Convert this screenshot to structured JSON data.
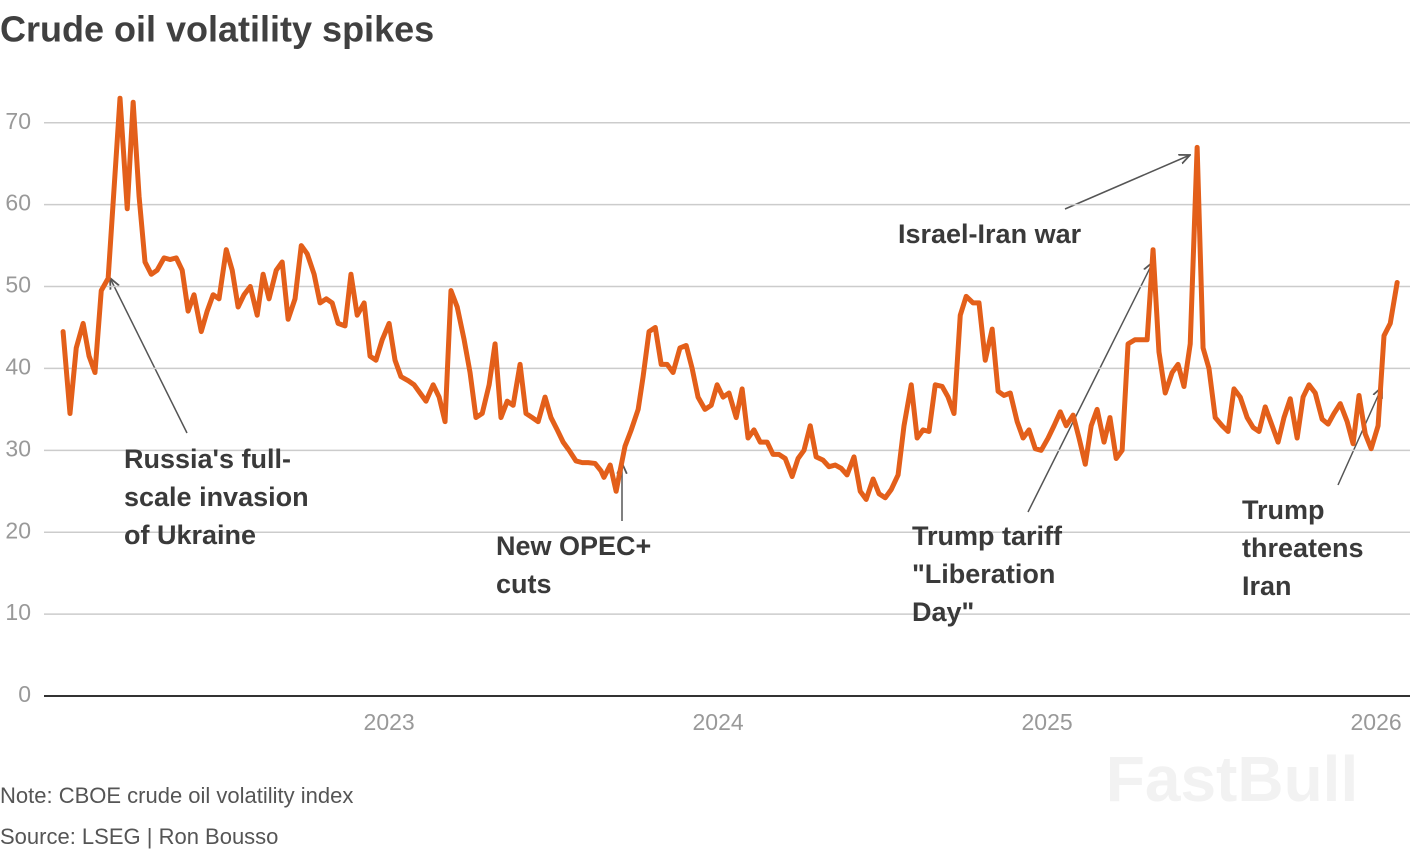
{
  "chart_data": {
    "type": "line",
    "title": "Crude oil volatility spikes",
    "note": "Note: CBOE crude oil volatility index",
    "source": "Source: LSEG | Ron Bousso",
    "watermark": "FastBull",
    "xlim": [
      2021.951,
      2026.103
    ],
    "xticks": [
      2023,
      2024,
      2025,
      2026
    ],
    "ylim": [
      0,
      74
    ],
    "yticks": [
      0,
      10,
      20,
      30,
      40,
      50,
      60,
      70
    ],
    "grid": true,
    "x": [
      2022.009,
      2022.03,
      2022.049,
      2022.07,
      2022.088,
      2022.106,
      2022.125,
      2022.146,
      2022.164,
      2022.182,
      2022.204,
      2022.222,
      2022.24,
      2022.258,
      2022.277,
      2022.295,
      2022.316,
      2022.334,
      2022.353,
      2022.371,
      2022.389,
      2022.407,
      2022.429,
      2022.447,
      2022.465,
      2022.483,
      2022.505,
      2022.523,
      2022.541,
      2022.559,
      2022.578,
      2022.599,
      2022.617,
      2022.635,
      2022.657,
      2022.675,
      2022.693,
      2022.714,
      2022.733,
      2022.751,
      2022.772,
      2022.79,
      2022.809,
      2022.827,
      2022.845,
      2022.866,
      2022.884,
      2022.903,
      2022.924,
      2022.942,
      2022.96,
      2022.979,
      2023.0,
      2023.018,
      2023.036,
      2023.058,
      2023.076,
      2023.094,
      2023.112,
      2023.134,
      2023.152,
      2023.17,
      2023.188,
      2023.207,
      2023.228,
      2023.246,
      2023.264,
      2023.283,
      2023.304,
      2023.322,
      2023.34,
      2023.359,
      2023.377,
      2023.398,
      2023.416,
      2023.435,
      2023.453,
      2023.474,
      2023.492,
      2023.511,
      2023.529,
      2023.547,
      2023.568,
      2023.587,
      2023.605,
      2023.626,
      2023.644,
      2023.653,
      2023.672,
      2023.69,
      2023.702,
      2023.717,
      2023.736,
      2023.757,
      2023.772,
      2023.79,
      2023.809,
      2023.827,
      2023.845,
      2023.863,
      2023.884,
      2023.903,
      2023.921,
      2023.939,
      2023.96,
      2023.979,
      2023.997,
      2024.015,
      2024.033,
      2024.055,
      2024.073,
      2024.091,
      2024.109,
      2024.128,
      2024.149,
      2024.167,
      2024.185,
      2024.204,
      2024.225,
      2024.243,
      2024.261,
      2024.28,
      2024.298,
      2024.319,
      2024.337,
      2024.356,
      2024.374,
      2024.392,
      2024.413,
      2024.432,
      2024.45,
      2024.471,
      2024.489,
      2024.508,
      2024.526,
      2024.547,
      2024.565,
      2024.587,
      2024.605,
      2024.623,
      2024.641,
      2024.66,
      2024.681,
      2024.699,
      2024.717,
      2024.736,
      2024.754,
      2024.775,
      2024.793,
      2024.812,
      2024.833,
      2024.851,
      2024.869,
      2024.888,
      2024.909,
      2024.927,
      2024.945,
      2024.964,
      2024.982,
      2025.003,
      2025.021,
      2025.04,
      2025.058,
      2025.079,
      2025.097,
      2025.116,
      2025.134,
      2025.152,
      2025.173,
      2025.191,
      2025.21,
      2025.228,
      2025.246,
      2025.267,
      2025.286,
      2025.304,
      2025.322,
      2025.34,
      2025.359,
      2025.38,
      2025.398,
      2025.416,
      2025.435,
      2025.456,
      2025.474,
      2025.492,
      2025.511,
      2025.532,
      2025.55,
      2025.568,
      2025.587,
      2025.608,
      2025.626,
      2025.644,
      2025.663,
      2025.684,
      2025.702,
      2025.72,
      2025.739,
      2025.76,
      2025.778,
      2025.796,
      2025.815,
      2025.836,
      2025.854,
      2025.872,
      2025.891,
      2025.912,
      2025.93,
      2025.948,
      2025.967,
      2025.985,
      2026.006,
      2026.024,
      2026.043,
      2026.064
    ],
    "series": [
      {
        "name": "CBOE crude oil volatility index",
        "color": "#e35f1a",
        "values": [
          44.5,
          34.5,
          42.5,
          45.5,
          41.5,
          39.5,
          49.5,
          51,
          62,
          73,
          59.5,
          72.5,
          61,
          53,
          51.5,
          52,
          53.5,
          53.3,
          53.5,
          52,
          47,
          49,
          44.5,
          47,
          49,
          48.5,
          54.5,
          52,
          47.5,
          49,
          50,
          46.5,
          51.5,
          48.5,
          52,
          53,
          46,
          48.5,
          55,
          54,
          51.5,
          48,
          48.5,
          48,
          45.5,
          45.2,
          51.5,
          46.5,
          48,
          41.5,
          41,
          43.5,
          45.5,
          41,
          39,
          38.5,
          38,
          37,
          36,
          38,
          36.5,
          33.5,
          49.5,
          47.5,
          43.5,
          39.5,
          34,
          34.5,
          38,
          43,
          34,
          36,
          35.5,
          40.5,
          34.5,
          34,
          33.5,
          36.5,
          34,
          32.5,
          31,
          30,
          28.7,
          28.5,
          28.5,
          28.4,
          27.5,
          26.7,
          28.2,
          25,
          27.5,
          30.5,
          32.5,
          35,
          39,
          44.5,
          45,
          40.5,
          40.5,
          39.5,
          42.5,
          42.8,
          40,
          36.5,
          35,
          35.5,
          38,
          36.5,
          37,
          34,
          37.5,
          31.5,
          32.5,
          31,
          31,
          29.5,
          29.5,
          29,
          26.8,
          29,
          30,
          33,
          29.2,
          28.8,
          28,
          28.2,
          27.8,
          27,
          29.2,
          25,
          24,
          26.5,
          24.7,
          24.2,
          25.2,
          27,
          33,
          38,
          31.5,
          32.5,
          32.3,
          38,
          37.8,
          36.5,
          34.5,
          46.5,
          48.8,
          48,
          48,
          41,
          44.8,
          37.2,
          36.7,
          37,
          33.5,
          31.5,
          32.5,
          30.2,
          30,
          31.5,
          33,
          34.7,
          33,
          34.3,
          31.5,
          28.3,
          33,
          35,
          31,
          34,
          29,
          30,
          43,
          43.5,
          43.5,
          43.5,
          54.5,
          42,
          37,
          39.5,
          40.5,
          37.8,
          43,
          67,
          42.5,
          40,
          34,
          33,
          32.3,
          37.5,
          36.5,
          34,
          32.8,
          32.3,
          35.3,
          33,
          31,
          34,
          36.3,
          31.5,
          36.5,
          38,
          37,
          33.8,
          33.2,
          34.5,
          35.7,
          33.5,
          30.8,
          36.7,
          32,
          30.2,
          33,
          44,
          45.5,
          50.5
        ]
      }
    ],
    "annotations": [
      {
        "lines": [
          "Russia's full-",
          "scale invasion",
          "of Ukraine"
        ]
      },
      {
        "lines": [
          "New OPEC+",
          "cuts"
        ]
      },
      {
        "lines": [
          "Israel-Iran war"
        ]
      },
      {
        "lines": [
          "Trump tariff",
          "\"Liberation",
          "Day\""
        ]
      },
      {
        "lines": [
          "Trump",
          "threatens",
          "Iran"
        ]
      }
    ]
  }
}
